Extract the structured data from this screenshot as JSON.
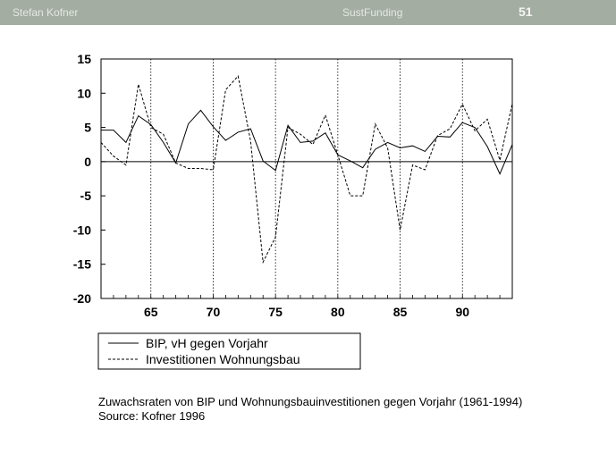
{
  "header": {
    "author": "Stefan Kofner",
    "title": "SustFunding",
    "page": "51"
  },
  "caption": {
    "line1": "Zuwachsraten von BIP und Wohnungsbauinvestitionen gegen Vorjahr (1961-1994)",
    "line2": "Source: Kofner 1996"
  },
  "chart_data": {
    "type": "line",
    "x": [
      1961,
      1962,
      1963,
      1964,
      1965,
      1966,
      1967,
      1968,
      1969,
      1970,
      1971,
      1972,
      1973,
      1974,
      1975,
      1976,
      1977,
      1978,
      1979,
      1980,
      1981,
      1982,
      1983,
      1984,
      1985,
      1986,
      1987,
      1988,
      1989,
      1990,
      1991,
      1992,
      1993,
      1994
    ],
    "series": [
      {
        "name": "BIP, vH gegen Vorjahr",
        "style": "solid",
        "values": [
          4.6,
          4.6,
          2.8,
          6.7,
          5.4,
          2.8,
          -0.2,
          5.5,
          7.5,
          5.1,
          3.1,
          4.3,
          4.8,
          0.1,
          -1.3,
          5.3,
          2.8,
          3.0,
          4.2,
          1.0,
          0.1,
          -0.9,
          1.8,
          2.8,
          2.0,
          2.3,
          1.5,
          3.7,
          3.6,
          5.7,
          5.0,
          2.2,
          -1.8,
          2.5
        ]
      },
      {
        "name": "Investitionen Wohnungsbau",
        "style": "dashed",
        "values": [
          2.8,
          0.8,
          -0.5,
          11.3,
          5.0,
          4.0,
          -0.2,
          -1.0,
          -1.0,
          -1.2,
          10.5,
          12.5,
          3.0,
          -14.7,
          -11.0,
          5.0,
          4.0,
          2.5,
          6.8,
          1.0,
          -5.0,
          -5.0,
          5.5,
          2.0,
          -10.0,
          -0.5,
          -1.2,
          3.8,
          4.8,
          8.4,
          4.5,
          6.2,
          0.2,
          8.5
        ]
      }
    ],
    "ylim": [
      -20,
      15
    ],
    "yticks": [
      15,
      10,
      5,
      0,
      -5,
      -10,
      -15,
      -20
    ],
    "xlim": [
      1961,
      1994
    ],
    "xticks": [
      1965,
      1970,
      1975,
      1980,
      1985,
      1990
    ],
    "xtick_labels": [
      "65",
      "70",
      "75",
      "80",
      "85",
      "90"
    ],
    "zero_line": true,
    "vertical_gridlines": "dotted",
    "legend_position": "bottom"
  }
}
